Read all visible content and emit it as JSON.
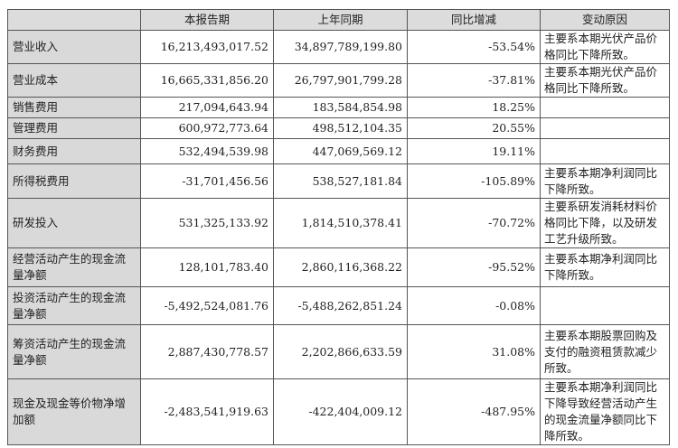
{
  "header": {
    "blank": "",
    "current": "本报告期",
    "prior": "上年同期",
    "change": "同比增减",
    "reason": "变动原因"
  },
  "rows": [
    {
      "item": "营业收入",
      "current": "16,213,493,017.52",
      "prior": "34,897,789,199.80",
      "change": "-53.54%",
      "reason": "主要系本期光伏产品价格同比下降所致。"
    },
    {
      "item": "营业成本",
      "current": "16,665,331,856.20",
      "prior": "26,797,901,799.28",
      "change": "-37.81%",
      "reason": "主要系本期光伏产品价格同比下降所致。"
    },
    {
      "item": "销售费用",
      "current": "217,094,643.94",
      "prior": "183,584,854.98",
      "change": "18.25%",
      "reason": ""
    },
    {
      "item": "管理费用",
      "current": "600,972,773.64",
      "prior": "498,512,104.35",
      "change": "20.55%",
      "reason": ""
    },
    {
      "item": "财务费用",
      "current": "532,494,539.98",
      "prior": "447,069,569.12",
      "change": "19.11%",
      "reason": ""
    },
    {
      "item": "所得税费用",
      "current": "-31,701,456.56",
      "prior": "538,527,181.84",
      "change": "-105.89%",
      "reason": "主要系本期净利润同比下降所致。"
    },
    {
      "item": "研发投入",
      "current": "531,325,133.92",
      "prior": "1,814,510,378.41",
      "change": "-70.72%",
      "reason": "主要系研发消耗材料价格同比下降，以及研发工艺升级所致。"
    },
    {
      "item": "经营活动产生的现金流量净额",
      "current": "128,101,783.40",
      "prior": "2,860,116,368.22",
      "change": "-95.52%",
      "reason": "主要系本期净利润同比下降所致。"
    },
    {
      "item": "投资活动产生的现金流量净额",
      "current": "-5,492,524,081.76",
      "prior": "-5,488,262,851.24",
      "change": "-0.08%",
      "reason": ""
    },
    {
      "item": "筹资活动产生的现金流量净额",
      "current": "2,887,430,778.57",
      "prior": "2,202,866,633.59",
      "change": "31.08%",
      "reason": "主要系本期股票回购及支付的融资租赁款减少所致。"
    },
    {
      "item": "现金及现金等价物净增加额",
      "current": "-2,483,541,919.63",
      "prior": "-422,404,009.12",
      "change": "-487.95%",
      "reason": "主要系本期净利润同比下降导致经营活动产生的现金流量净额同比下降所致。"
    }
  ]
}
